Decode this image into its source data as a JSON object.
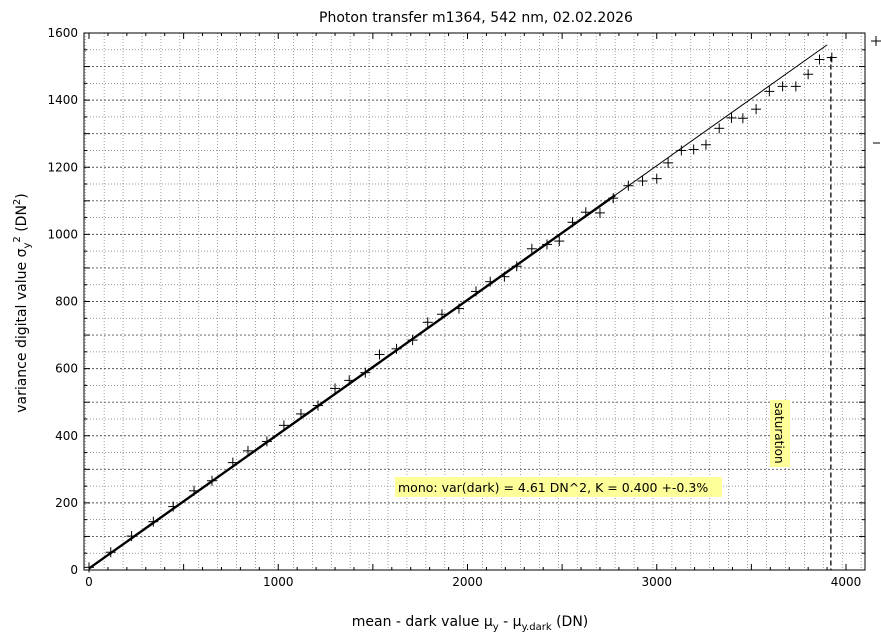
{
  "chart_data": {
    "type": "scatter",
    "title": "Photon transfer m1364,  542 nm, 02.02.2026",
    "xlabel": {
      "main": "mean - dark value μ",
      "sub1": "y",
      "mid": " - μ",
      "sub2": "y.dark",
      "tail": " (DN)"
    },
    "ylabel": {
      "main": "variance digital value σ",
      "sub": "y",
      "sup": "2",
      "tail": " (DN",
      "sup2": "2",
      "end": ")"
    },
    "xlim": [
      0,
      4000
    ],
    "ylim": [
      0,
      1600
    ],
    "x_ticks": [
      0,
      1000,
      2000,
      3000,
      4000
    ],
    "y_ticks": [
      0,
      200,
      400,
      600,
      800,
      1000,
      1200,
      1400,
      1600
    ],
    "grid": true,
    "annotation": "mono: var(dark) = 4.61 DN^2, K = 0.400 +-0.3%",
    "saturation_label": "saturation",
    "saturation_x": 3920,
    "fit": {
      "slope": 0.4,
      "intercept": 4.61,
      "x_start": 0,
      "x_end": 3900,
      "bold_end": 2780
    },
    "points": [
      [
        0,
        8
      ],
      [
        115,
        53
      ],
      [
        225,
        101
      ],
      [
        340,
        144
      ],
      [
        445,
        189
      ],
      [
        555,
        236
      ],
      [
        650,
        266
      ],
      [
        760,
        320
      ],
      [
        840,
        355
      ],
      [
        940,
        383
      ],
      [
        1030,
        431
      ],
      [
        1120,
        465
      ],
      [
        1210,
        490
      ],
      [
        1300,
        541
      ],
      [
        1375,
        565
      ],
      [
        1460,
        588
      ],
      [
        1535,
        642
      ],
      [
        1625,
        659
      ],
      [
        1710,
        685
      ],
      [
        1790,
        738
      ],
      [
        1865,
        762
      ],
      [
        1955,
        779
      ],
      [
        2045,
        830
      ],
      [
        2120,
        859
      ],
      [
        2195,
        874
      ],
      [
        2260,
        905
      ],
      [
        2340,
        957
      ],
      [
        2420,
        970
      ],
      [
        2485,
        980
      ],
      [
        2555,
        1036
      ],
      [
        2625,
        1066
      ],
      [
        2700,
        1064
      ],
      [
        2770,
        1108
      ],
      [
        2850,
        1145
      ],
      [
        2925,
        1159
      ],
      [
        3000,
        1166
      ],
      [
        3060,
        1213
      ],
      [
        3130,
        1250
      ],
      [
        3195,
        1253
      ],
      [
        3260,
        1267
      ],
      [
        3330,
        1316
      ],
      [
        3395,
        1347
      ],
      [
        3455,
        1346
      ],
      [
        3525,
        1373
      ],
      [
        3595,
        1426
      ],
      [
        3665,
        1441
      ],
      [
        3735,
        1441
      ],
      [
        3800,
        1477
      ],
      [
        3860,
        1521
      ],
      [
        3925,
        1527
      ]
    ]
  }
}
